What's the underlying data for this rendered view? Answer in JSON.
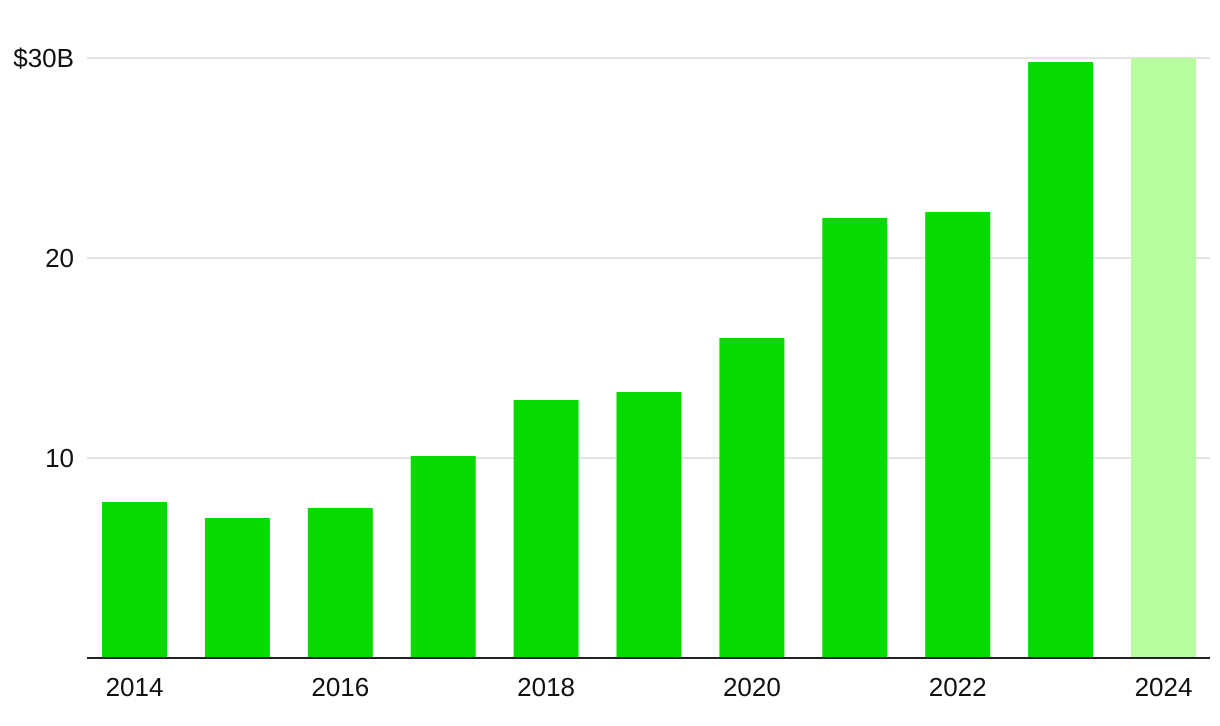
{
  "colors": {
    "bar": "#08da00",
    "bar_highlight": "#b8fca0",
    "grid": "#e3e3e3",
    "axis": "#222222",
    "text": "#111111"
  },
  "chart_data": {
    "type": "bar",
    "title": "",
    "xlabel": "",
    "ylabel": "",
    "categories": [
      "2014",
      "2015",
      "2016",
      "2017",
      "2018",
      "2019",
      "2020",
      "2021",
      "2022",
      "2023",
      "2024"
    ],
    "values": [
      7.8,
      7.0,
      7.5,
      10.1,
      12.9,
      13.3,
      16.0,
      22.0,
      22.3,
      29.8,
      30.0
    ],
    "highlight_category": "2024",
    "ylim": [
      0,
      30
    ],
    "y_ticks": [
      {
        "value": 10,
        "label": "10"
      },
      {
        "value": 20,
        "label": "20"
      },
      {
        "value": 30,
        "label": "$30B"
      }
    ],
    "x_tick_labels": [
      "2014",
      "",
      "2016",
      "",
      "2018",
      "",
      "2020",
      "",
      "2022",
      "",
      "2024"
    ],
    "grid": true,
    "legend": "none"
  }
}
